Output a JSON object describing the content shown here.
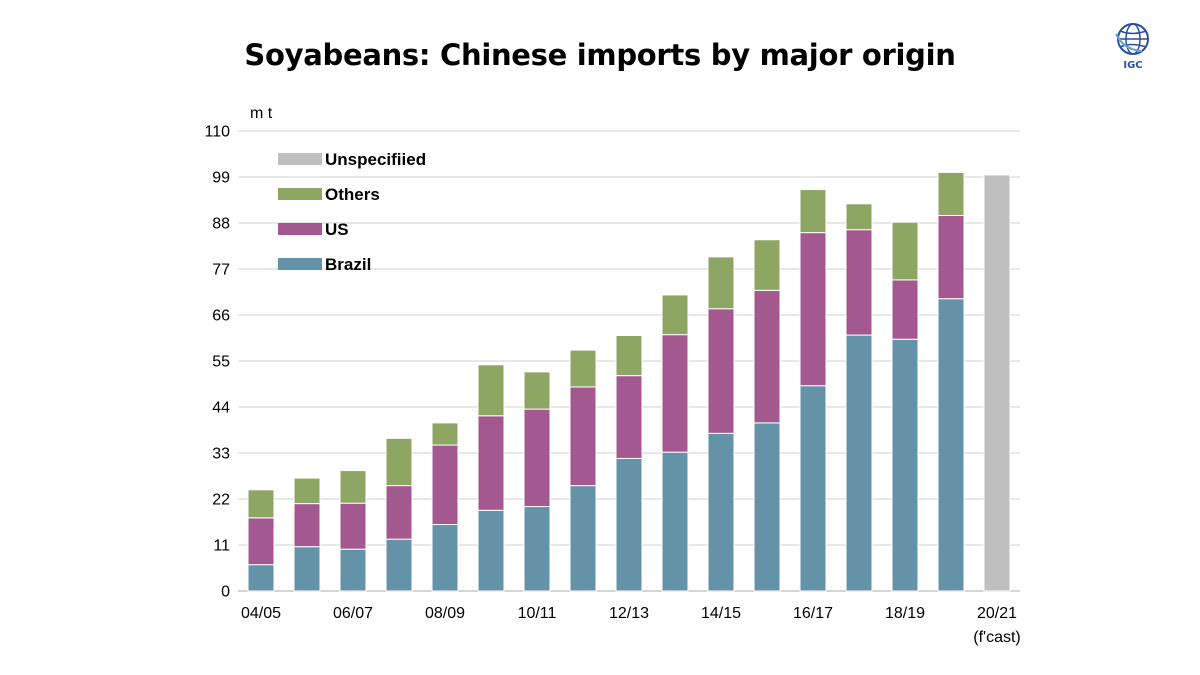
{
  "title": "Soyabeans: Chinese imports by major origin",
  "logo": {
    "text": "IGC",
    "icon": "igc-globe-icon",
    "color": "#2a4fa0"
  },
  "chart_data": {
    "type": "bar",
    "stacked": true,
    "title": "Soyabeans: Chinese imports by major origin",
    "ylabel": "m t",
    "xlabel": "",
    "ylim": [
      0,
      110
    ],
    "yticks": [
      0,
      11,
      22,
      33,
      44,
      55,
      66,
      77,
      88,
      99,
      110
    ],
    "grid": "horizontal",
    "legend": "top-left",
    "categories": [
      "04/05",
      "05/06",
      "06/07",
      "07/08",
      "08/09",
      "09/10",
      "10/11",
      "11/12",
      "12/13",
      "13/14",
      "14/15",
      "15/16",
      "16/17",
      "17/18",
      "18/19",
      "19/20",
      "20/21 (f'cast)"
    ],
    "category_labels": [
      "04/05",
      "",
      "06/07",
      "",
      "08/09",
      "",
      "10/11",
      "",
      "12/13",
      "",
      "14/15",
      "",
      "16/17",
      "",
      "18/19",
      "",
      "20/21"
    ],
    "category_sublabels": [
      "",
      "",
      "",
      "",
      "",
      "",
      "",
      "",
      "",
      "",
      "",
      "",
      "",
      "",
      "",
      "",
      "(f'cast)"
    ],
    "series": [
      {
        "name": "Brazil",
        "color": "#6492a6",
        "values": [
          6.3,
          10.6,
          10.0,
          12.4,
          15.9,
          19.3,
          20.2,
          25.2,
          31.7,
          33.2,
          37.7,
          40.2,
          49.1,
          61.2,
          60.2,
          69.9,
          0
        ]
      },
      {
        "name": "US",
        "color": "#a3588f",
        "values": [
          11.2,
          10.3,
          11.0,
          12.8,
          19.0,
          22.6,
          23.3,
          23.6,
          19.8,
          28.1,
          29.8,
          31.7,
          36.6,
          25.2,
          14.2,
          19.9,
          0
        ]
      },
      {
        "name": "Others",
        "color": "#8ea663",
        "values": [
          6.7,
          6.1,
          7.8,
          11.3,
          5.3,
          12.2,
          8.9,
          8.8,
          9.6,
          9.5,
          12.4,
          12.1,
          10.3,
          6.2,
          13.8,
          10.3,
          0
        ]
      },
      {
        "name": "Unspecifiied",
        "color": "#bfbfbf",
        "values": [
          0,
          0,
          0,
          0,
          0,
          0,
          0,
          0,
          0,
          0,
          0,
          0,
          0,
          0,
          0,
          0,
          99.5
        ]
      }
    ],
    "legend_order": [
      "Unspecifiied",
      "Others",
      "US",
      "Brazil"
    ]
  }
}
